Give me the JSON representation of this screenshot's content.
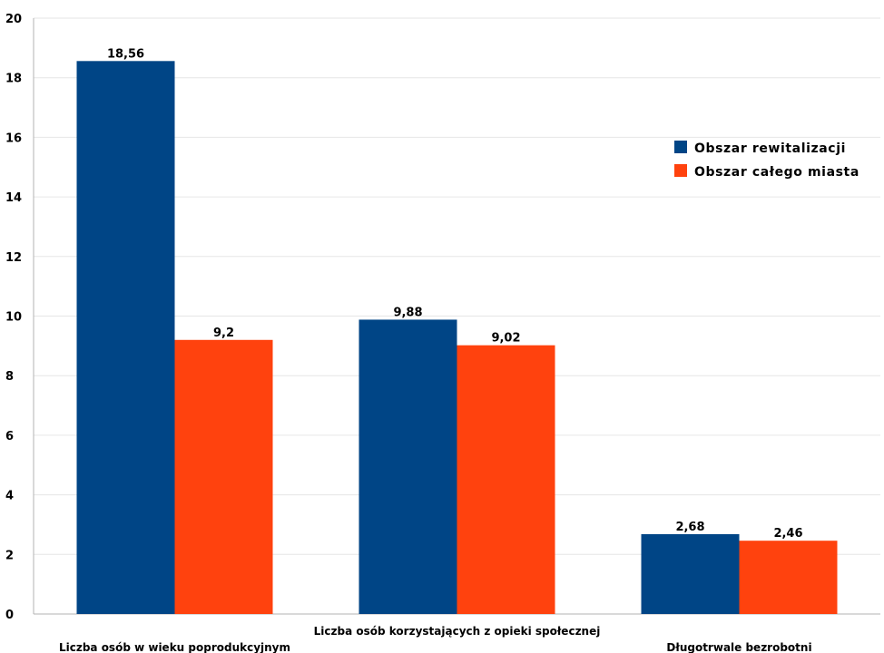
{
  "chart_data": {
    "type": "bar",
    "categories": [
      "Liczba osób w wieku poprodukcyjnym",
      "Liczba osób korzystających z opieki społecznej",
      "Długotrwale bezrobotni"
    ],
    "series": [
      {
        "name": "Obszar rewitalizacji",
        "color": "#004586",
        "values": [
          18.56,
          9.88,
          2.68
        ],
        "labels": [
          "18,56",
          "9,88",
          "2,68"
        ]
      },
      {
        "name": "Obszar całego miasta",
        "color": "#ff420e",
        "values": [
          9.2,
          9.02,
          2.46
        ],
        "labels": [
          "9,2",
          "9,02",
          "2,46"
        ]
      }
    ],
    "ylim": [
      0,
      20
    ],
    "yticks": [
      "0",
      "2",
      "4",
      "6",
      "8",
      "10",
      "12",
      "14",
      "16",
      "18",
      "20"
    ],
    "title": "",
    "xlabel": "",
    "ylabel": "",
    "grid": true,
    "legend": "right"
  }
}
